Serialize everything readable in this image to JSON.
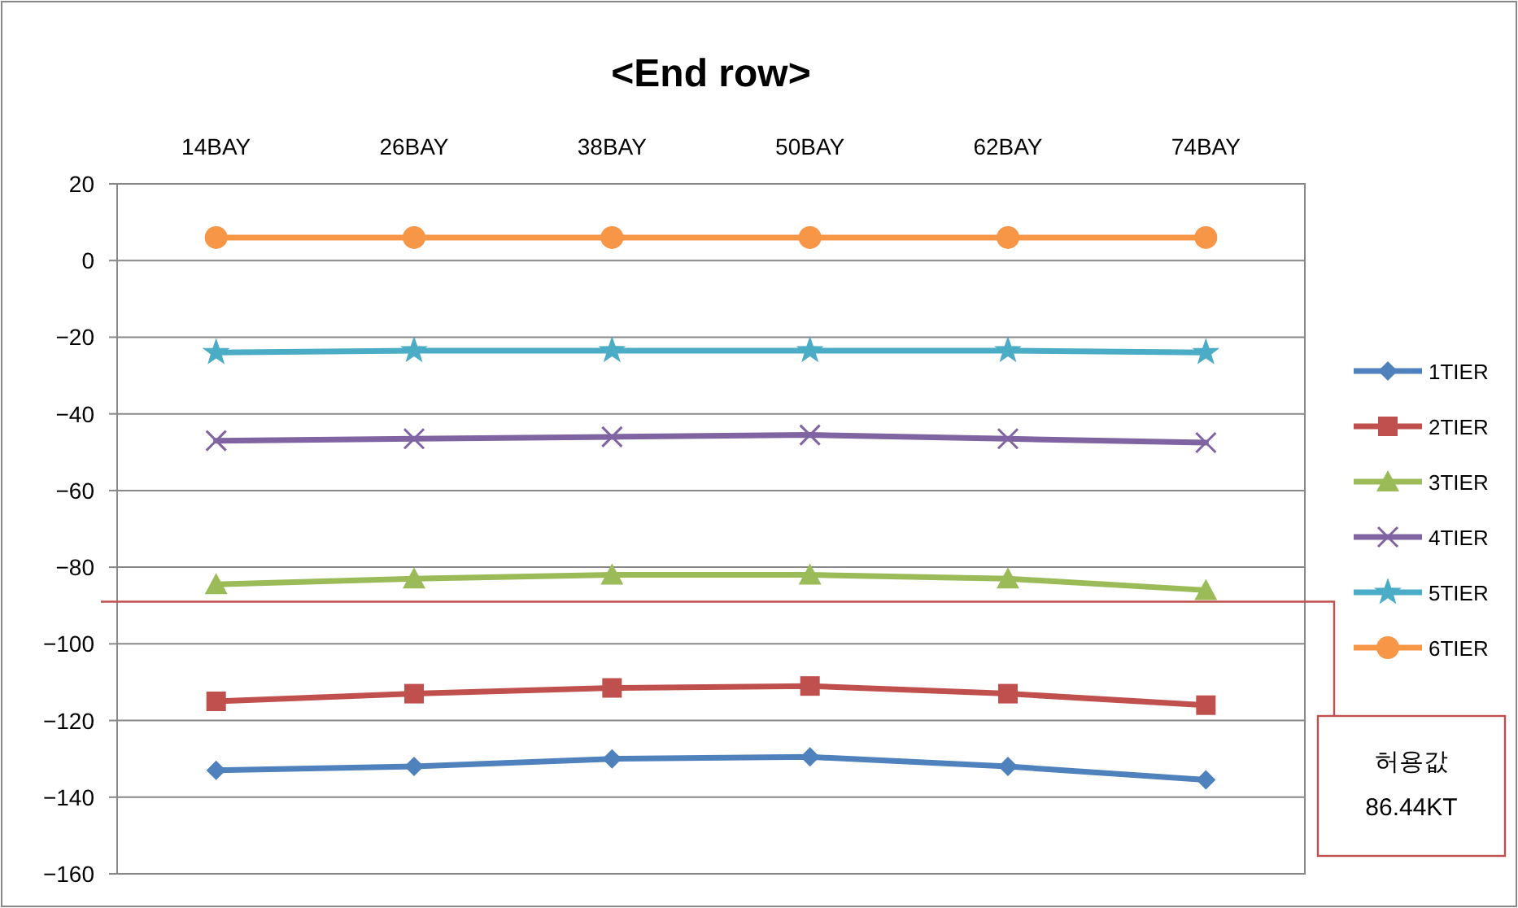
{
  "chart_data": {
    "type": "line",
    "title": "<End row>",
    "categories": [
      "14BAY",
      "26BAY",
      "38BAY",
      "50BAY",
      "62BAY",
      "74BAY"
    ],
    "ylim": [
      -160,
      20
    ],
    "yticks": [
      -160,
      -140,
      -120,
      -100,
      -80,
      -60,
      -40,
      -20,
      0,
      20
    ],
    "grid": "y",
    "legend": "right",
    "line_style": "solid",
    "series": [
      {
        "name": "1TIER",
        "color": "#4f81bd",
        "marker": "diamond",
        "values": [
          -133,
          -132,
          -130,
          -129.5,
          -132,
          -135.5
        ]
      },
      {
        "name": "2TIER",
        "color": "#c0504d",
        "marker": "square",
        "values": [
          -115,
          -113,
          -111.5,
          -111,
          -113,
          -116
        ]
      },
      {
        "name": "3TIER",
        "color": "#9bbb59",
        "marker": "triangle",
        "values": [
          -84.5,
          -83,
          -82,
          -82,
          -83,
          -86
        ]
      },
      {
        "name": "4TIER",
        "color": "#8064a2",
        "marker": "cross",
        "values": [
          -47,
          -46.5,
          -46,
          -45.5,
          -46.5,
          -47.5
        ]
      },
      {
        "name": "5TIER",
        "color": "#4bacc6",
        "marker": "star",
        "values": [
          -24,
          -23.5,
          -23.5,
          -23.5,
          -23.5,
          -24
        ]
      },
      {
        "name": "6TIER",
        "color": "#f79646",
        "marker": "circle",
        "values": [
          6,
          6,
          6,
          6,
          6,
          6
        ]
      }
    ],
    "ref_lines": [
      {
        "axis": "y",
        "value": -89,
        "label": "허용값 86.44KT",
        "color": "#c0504d"
      }
    ]
  }
}
